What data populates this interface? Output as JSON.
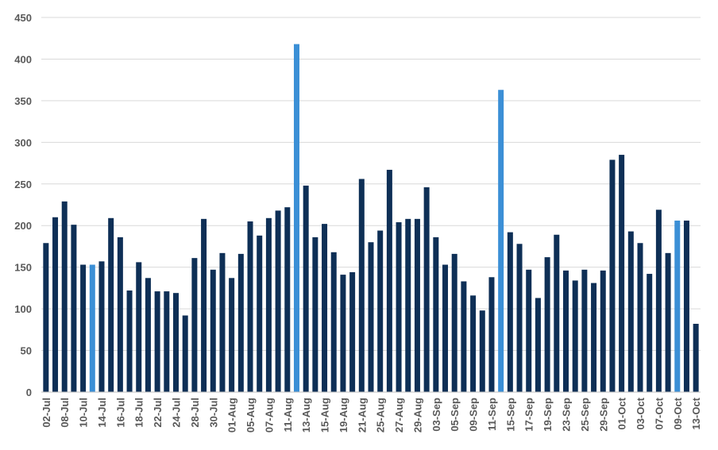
{
  "chart_data": {
    "type": "bar",
    "categories": [
      "02-Jul",
      null,
      "08-Jul",
      null,
      "10-Jul",
      null,
      "14-Jul",
      null,
      "16-Jul",
      null,
      "18-Jul",
      null,
      "22-Jul",
      null,
      "24-Jul",
      null,
      "28-Jul",
      null,
      "30-Jul",
      null,
      "01-Aug",
      null,
      "05-Aug",
      null,
      "07-Aug",
      null,
      "11-Aug",
      null,
      "13-Aug",
      null,
      "15-Aug",
      null,
      "19-Aug",
      null,
      "21-Aug",
      null,
      "25-Aug",
      null,
      "27-Aug",
      null,
      "29-Aug",
      null,
      "03-Sep",
      null,
      "05-Sep",
      null,
      "09-Sep",
      null,
      "11-Sep",
      null,
      "15-Sep",
      null,
      "17-Sep",
      null,
      "19-Sep",
      null,
      "23-Sep",
      null,
      "25-Sep",
      null,
      "29-Sep",
      null,
      "01-Oct",
      null,
      "03-Oct",
      null,
      "07-Oct",
      null,
      "09-Oct",
      null,
      "13-Oct"
    ],
    "values": [
      179,
      210,
      229,
      201,
      153,
      153,
      157,
      209,
      186,
      122,
      156,
      137,
      121,
      121,
      119,
      92,
      161,
      208,
      147,
      167,
      137,
      166,
      205,
      188,
      209,
      218,
      222,
      418,
      248,
      186,
      202,
      168,
      141,
      144,
      256,
      180,
      194,
      267,
      204,
      208,
      208,
      246,
      186,
      153,
      166,
      133,
      116,
      98,
      138,
      363,
      192,
      178,
      147,
      113,
      162,
      189,
      146,
      134,
      147,
      131,
      146,
      279,
      285,
      193,
      179,
      142,
      219,
      167,
      206,
      206,
      82
    ],
    "color": "#0e2f56",
    "highlight_color": "#3b8fd6",
    "highlighted": [
      5,
      27,
      49,
      68
    ],
    "ylim": [
      0,
      450
    ],
    "yticks": [
      0,
      50,
      100,
      150,
      200,
      250,
      300,
      350,
      400,
      450
    ],
    "grid": true
  }
}
